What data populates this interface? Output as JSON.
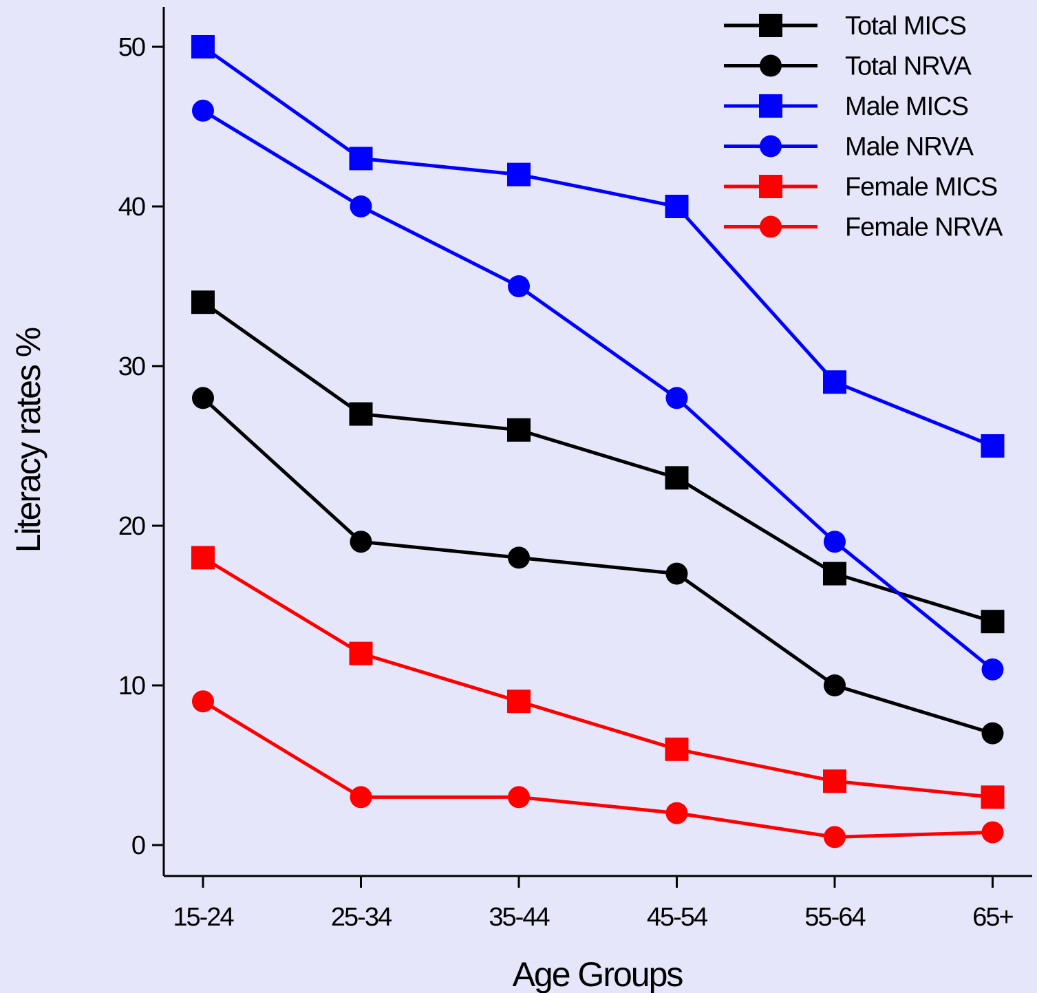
{
  "chart_data": {
    "type": "line",
    "title": "",
    "xlabel": "Age Groups",
    "ylabel": "Literacy rates %",
    "categories": [
      "15-24",
      "25-34",
      "35-44",
      "45-54",
      "55-64",
      "65+"
    ],
    "ylim": [
      -2,
      52.5
    ],
    "yticks": [
      0,
      10,
      20,
      30,
      40,
      50
    ],
    "grid": false,
    "legend_position": "top-right",
    "series": [
      {
        "name": "Total MICS",
        "marker": "square",
        "color": "#000000",
        "values": [
          34,
          27,
          26,
          23,
          17,
          14
        ]
      },
      {
        "name": "Total NRVA",
        "marker": "circle",
        "color": "#000000",
        "values": [
          28,
          19,
          18,
          17,
          10,
          7
        ]
      },
      {
        "name": "Male MICS",
        "marker": "square",
        "color": "#0000ff",
        "values": [
          50,
          43,
          42,
          40,
          29,
          25
        ]
      },
      {
        "name": "Male NRVA",
        "marker": "circle",
        "color": "#0000ff",
        "values": [
          46,
          40,
          35,
          28,
          19,
          11
        ]
      },
      {
        "name": "Female MICS",
        "marker": "square",
        "color": "#ff0000",
        "values": [
          18,
          12,
          9,
          6,
          4,
          3
        ]
      },
      {
        "name": "Female NRVA",
        "marker": "circle",
        "color": "#ff0000",
        "values": [
          9,
          3,
          3,
          2,
          0.5,
          0.8
        ]
      }
    ]
  }
}
